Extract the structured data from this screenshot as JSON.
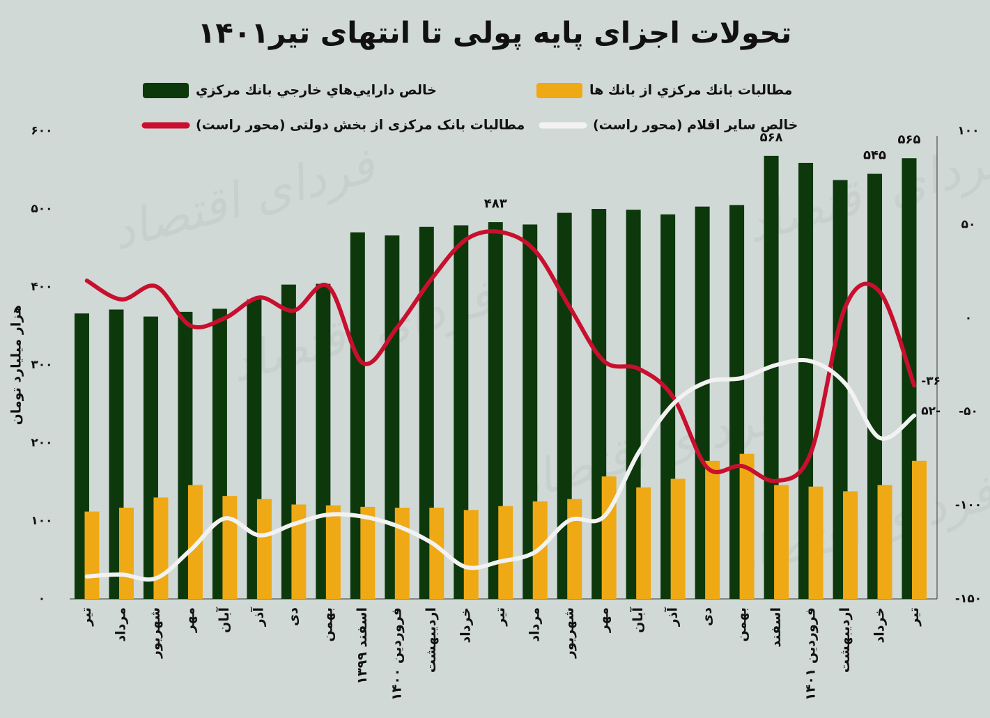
{
  "chart_data": {
    "type": "combo",
    "title": "تحولات اجزای پایه پولی تا انتهای تیر۱۴۰۱",
    "y_label": "هزار میلیارد تومان",
    "watermark": "فردای اقتصاد",
    "categories": [
      "تیر",
      "مرداد",
      "شهریور",
      "مهر",
      "آبان",
      "آذر",
      "دی",
      "بهمن",
      "اسفند ۱۳۹۹",
      "فروردین ۱۴۰۰",
      "اردیبهشت",
      "خرداد",
      "تیر",
      "مرداد",
      "شهریور",
      "مهر",
      "آبان",
      "آذر",
      "دی",
      "بهمن",
      "اسفند",
      "فروردین ۱۴۰۱",
      "اردیبهشت",
      "خرداد",
      "تیر"
    ],
    "series": [
      {
        "name": "خالص دارايي‌هاي خارجي بانك مركزي",
        "type": "bar",
        "color": "#0c380c",
        "values": [
          366,
          371,
          362,
          368,
          372,
          384,
          403,
          404,
          470,
          466,
          477,
          479,
          483,
          480,
          495,
          500,
          499,
          493,
          503,
          505,
          568,
          559,
          537,
          545,
          565
        ],
        "value_labels": [
          null,
          null,
          null,
          null,
          null,
          null,
          null,
          null,
          null,
          null,
          null,
          null,
          "۴۸۳",
          null,
          null,
          null,
          null,
          null,
          null,
          null,
          "۵۶۸",
          null,
          null,
          "۵۴۵",
          "۵۶۵"
        ]
      },
      {
        "name": "مطالبات بانك مركزي از بانك ها",
        "type": "bar",
        "color": "#eea915",
        "values": [
          112,
          117,
          130,
          146,
          132,
          128,
          121,
          120,
          118,
          117,
          117,
          114,
          119,
          125,
          128,
          157,
          143,
          154,
          177,
          186,
          146,
          144,
          138,
          146,
          177
        ]
      },
      {
        "name": "مطالبات بانک مرکزی از بخش دولتی (محور راست)",
        "type": "line",
        "axis": "y2",
        "color": "#c8102e",
        "values": [
          20,
          10,
          17,
          -4,
          0,
          11,
          4,
          17,
          -24,
          -5,
          21,
          42,
          46,
          36,
          6,
          -23,
          -27,
          -42,
          -80,
          -79,
          -87,
          -72,
          6,
          14,
          -36
        ],
        "value_labels": [
          null,
          null,
          null,
          null,
          null,
          null,
          null,
          null,
          null,
          null,
          null,
          null,
          null,
          null,
          null,
          null,
          null,
          null,
          null,
          null,
          null,
          null,
          null,
          null,
          "-۳۶"
        ]
      },
      {
        "name": "خالص ساير اقلام (محور راست)",
        "type": "line",
        "axis": "y2",
        "color": "#f2f2f2",
        "values": [
          -138,
          -137,
          -139,
          -124,
          -107,
          -116,
          -110,
          -105,
          -106,
          -111,
          -120,
          -133,
          -130,
          -125,
          -108,
          -106,
          -72,
          -46,
          -34,
          -32,
          -25,
          -23,
          -35,
          -64,
          -52
        ],
        "value_labels": [
          null,
          null,
          null,
          null,
          null,
          null,
          null,
          null,
          null,
          null,
          null,
          null,
          null,
          null,
          null,
          null,
          null,
          null,
          null,
          null,
          null,
          null,
          null,
          null,
          "۵۲-"
        ]
      }
    ],
    "ylim": [
      0,
      600
    ],
    "yticks": [
      {
        "value": 0,
        "label": "۰"
      },
      {
        "value": 100,
        "label": "۱۰۰"
      },
      {
        "value": 200,
        "label": "۲۰۰"
      },
      {
        "value": 300,
        "label": "۳۰۰"
      },
      {
        "value": 400,
        "label": "۴۰۰"
      },
      {
        "value": 500,
        "label": "۵۰۰"
      },
      {
        "value": 600,
        "label": "۶۰۰"
      }
    ],
    "y2lim": [
      -150,
      100
    ],
    "y2ticks": [
      {
        "value": -150,
        "label": "-۱۵۰"
      },
      {
        "value": -100,
        "label": "-۱۰۰"
      },
      {
        "value": -50,
        "label": "-۵۰"
      },
      {
        "value": 0,
        "label": "۰"
      },
      {
        "value": 50,
        "label": "۵۰"
      },
      {
        "value": 100,
        "label": "۱۰۰"
      }
    ]
  }
}
